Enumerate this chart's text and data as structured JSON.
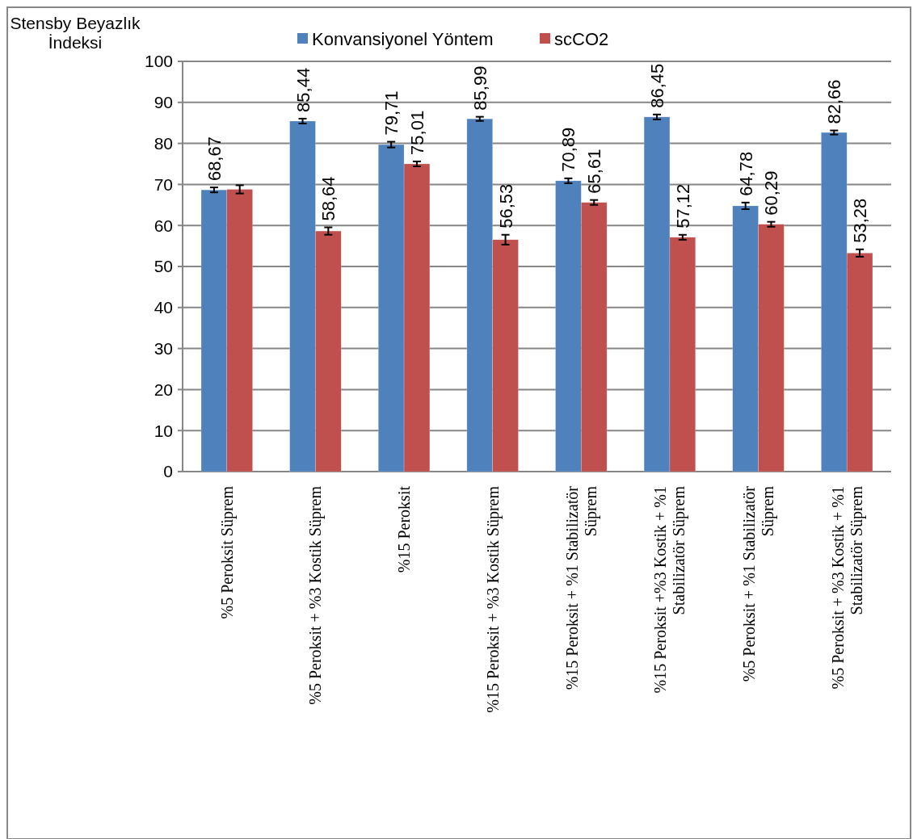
{
  "chart_data": {
    "type": "bar",
    "ylabel": "Stensby Beyazlık İndeksi",
    "categories": [
      "%5 Peroksit Süprem",
      "%5 Peroksit + %3 Kostik Süprem",
      "%15 Peroksit",
      "%15 Peroksit + %3 Kostik Süprem",
      "%15 Peroksit + %1 Stabilizatör Süprem",
      "%15 Peroksit +%3 Kostik + %1 Stabilizatör Süprem",
      "%5 Peroksit + %1 Stabilizatör Süprem",
      "%5 Peroksit + %3 Kostik + %1 Stabilizatör Süprem"
    ],
    "series": [
      {
        "name": "Konvansiyonel Yöntem",
        "color": "#4f81bd",
        "values": [
          68.67,
          85.44,
          79.71,
          85.99,
          70.89,
          86.45,
          64.78,
          82.66
        ],
        "errors": [
          0.6,
          0.6,
          0.7,
          0.5,
          0.6,
          0.6,
          0.8,
          0.5
        ],
        "value_labels": [
          "68,67",
          "85,44",
          "79,71",
          "85,99",
          "70,89",
          "86,45",
          "64,78",
          "82,66"
        ]
      },
      {
        "name": "scCO2",
        "color": "#c0504d",
        "values": [
          68.8,
          58.64,
          75.01,
          56.53,
          65.61,
          57.12,
          60.29,
          53.28
        ],
        "errors": [
          1.0,
          0.9,
          0.6,
          1.2,
          0.6,
          0.6,
          0.6,
          0.9
        ],
        "value_labels": [
          null,
          "58,64",
          "75,01",
          "56,53",
          "65,61",
          "57,12",
          "60,29",
          "53,28"
        ]
      }
    ],
    "ylim": [
      0,
      100
    ],
    "yticks": [
      0,
      10,
      20,
      30,
      40,
      50,
      60,
      70,
      80,
      90,
      100
    ],
    "grid": "y",
    "legend": "top"
  }
}
